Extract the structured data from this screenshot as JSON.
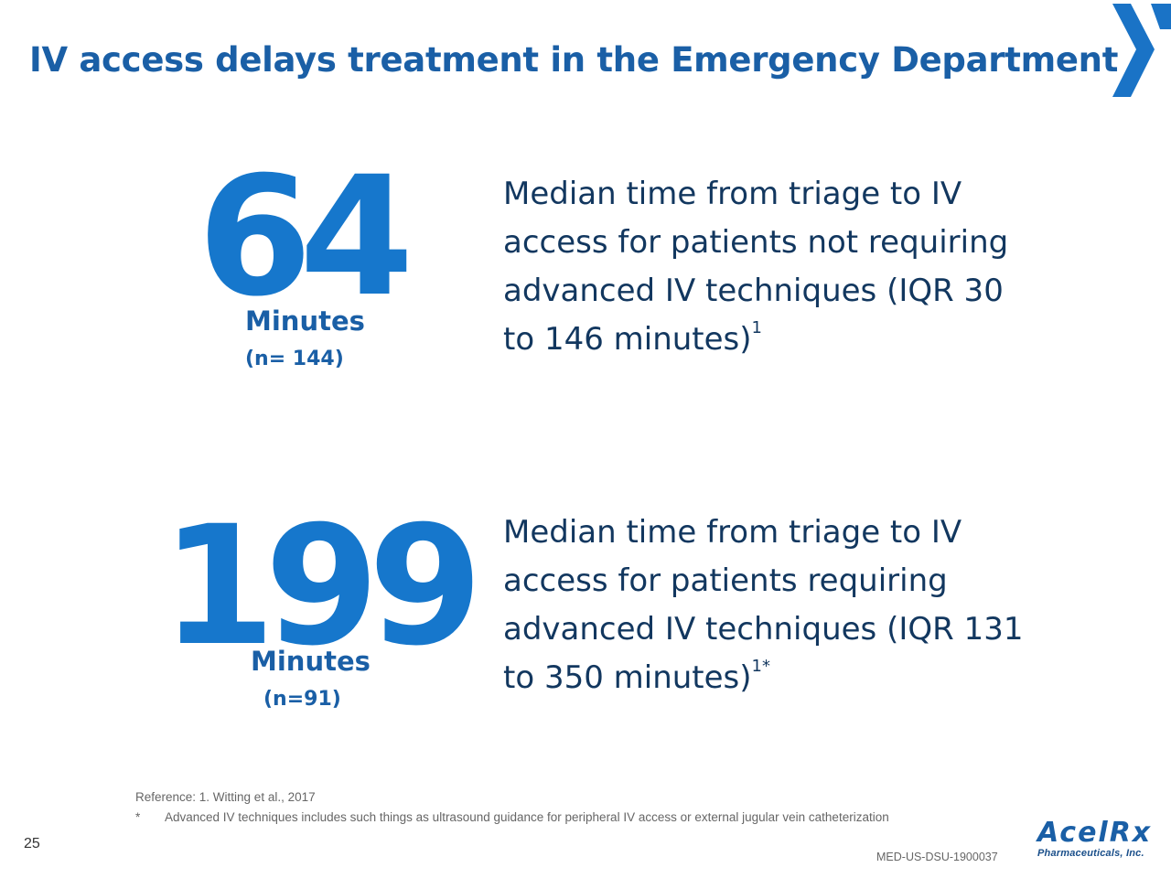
{
  "title": "IV access delays treatment in the Emergency Department",
  "stats": [
    {
      "value": "64",
      "unit": "Minutes",
      "n": "(n= 144)",
      "description": "Median time from triage to IV access for patients not requiring advanced IV techniques (IQR 30 to 146 minutes)",
      "superscript": "1"
    },
    {
      "value": "199",
      "unit": "Minutes",
      "n": "(n=91)",
      "description": "Median time from triage to IV access for patients requiring advanced IV techniques (IQR 131 to 350 minutes)",
      "superscript": "1*"
    }
  ],
  "footnotes": {
    "reference": "Reference: 1. Witting et al., 2017",
    "star_mark": "*",
    "star_note": "Advanced IV techniques includes such things as ultrasound guidance for peripheral IV access or external jugular vein catheterization"
  },
  "page_number": "25",
  "document_code": "MED-US-DSU-1900037",
  "brand": {
    "name": "AcelRx",
    "tagline": "Pharmaceuticals, Inc."
  },
  "colors": {
    "title": "#1a5fa6",
    "big_number": "#1677cc",
    "body_text": "#12375f",
    "logo_blue": "#1a73c6"
  },
  "icons": {
    "corner_logo": "chevron-x-logo-icon"
  }
}
